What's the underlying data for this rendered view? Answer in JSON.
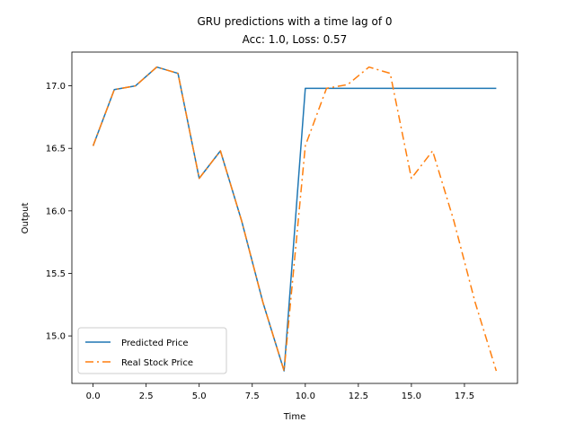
{
  "chart_data": {
    "type": "line",
    "title": "GRU predictions with a time lag of 0",
    "subtitle": "Acc: 1.0, Loss: 0.57",
    "xlabel": "Time",
    "ylabel": "Output",
    "xlim": [
      -1.0,
      20.0
    ],
    "ylim": [
      14.62,
      17.27
    ],
    "xticks": [
      0.0,
      2.5,
      5.0,
      7.5,
      10.0,
      12.5,
      15.0,
      17.5
    ],
    "xtick_labels": [
      "0.0",
      "2.5",
      "5.0",
      "7.5",
      "10.0",
      "12.5",
      "15.0",
      "17.5"
    ],
    "yticks": [
      15.0,
      15.5,
      16.0,
      16.5,
      17.0
    ],
    "ytick_labels": [
      "15.0",
      "15.5",
      "16.0",
      "16.5",
      "17.0"
    ],
    "grid": false,
    "legend_position": "lower-left",
    "x": [
      0,
      1,
      2,
      3,
      4,
      5,
      6,
      7,
      8,
      9,
      10,
      11,
      12,
      13,
      14,
      15,
      16,
      17,
      18,
      19
    ],
    "series": [
      {
        "name": "Predicted Price",
        "color": "#1f77b4",
        "style": "solid",
        "values": [
          16.52,
          16.97,
          17.0,
          17.15,
          17.1,
          16.26,
          16.48,
          15.92,
          15.27,
          14.72,
          16.98,
          16.98,
          16.98,
          16.98,
          16.98,
          16.98,
          16.98,
          16.98,
          16.98,
          16.98
        ]
      },
      {
        "name": "Real Stock Price",
        "color": "#ff7f0e",
        "style": "dashdot",
        "values": [
          16.52,
          16.97,
          17.0,
          17.15,
          17.1,
          16.26,
          16.48,
          15.92,
          15.27,
          14.72,
          16.52,
          16.98,
          17.01,
          17.15,
          17.1,
          16.26,
          16.48,
          15.92,
          15.27,
          14.72
        ]
      }
    ]
  }
}
